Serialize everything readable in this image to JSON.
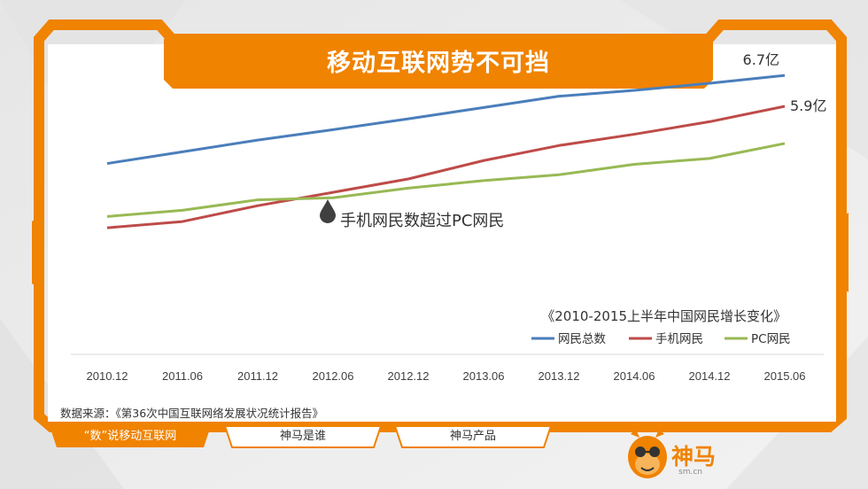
{
  "page": {
    "title": "移动互联网势不可挡",
    "source": "数据来源：《第36次中国互联网络发展状况统计报告》",
    "brand_name": "神马",
    "brand_domain": "sm.cn"
  },
  "nav": {
    "tabs": [
      {
        "label": "“数”说移动互联网",
        "active": true
      },
      {
        "label": "神马是谁",
        "active": false
      },
      {
        "label": "神马产品",
        "active": false
      }
    ]
  },
  "colors": {
    "accent": "#f08300",
    "total": "#4a7ebb",
    "mobile": "#be4b48",
    "pc": "#98b954"
  },
  "icons": [
    "mascot-icon",
    "drop-marker-icon"
  ],
  "chart_data": {
    "type": "line",
    "title": "《2010-2015上半年中国网民增长变化》",
    "categories": [
      "2010.12",
      "2011.06",
      "2011.12",
      "2012.06",
      "2012.12",
      "2013.06",
      "2013.12",
      "2014.06",
      "2014.12",
      "2015.06"
    ],
    "ylim": [
      0,
      7
    ],
    "grid": false,
    "legend_position": "bottom-right",
    "series": [
      {
        "name": "网民总数",
        "color": "#4a7ebb",
        "values": [
          4.57,
          4.85,
          5.13,
          5.38,
          5.64,
          5.91,
          6.18,
          6.32,
          6.49,
          6.68
        ],
        "end_label": "6.7亿"
      },
      {
        "name": "手机网民",
        "color": "#be4b48",
        "values": [
          3.03,
          3.18,
          3.56,
          3.88,
          4.2,
          4.64,
          5.0,
          5.27,
          5.57,
          5.94
        ],
        "end_label": "5.9亿"
      },
      {
        "name": "PC网民",
        "color": "#98b954",
        "values": [
          3.3,
          3.45,
          3.7,
          3.75,
          3.98,
          4.16,
          4.3,
          4.55,
          4.69,
          5.05
        ]
      }
    ],
    "annotation": {
      "text": "手机网民数超过PC网民",
      "category": "2012.06",
      "value": 3.84
    }
  }
}
